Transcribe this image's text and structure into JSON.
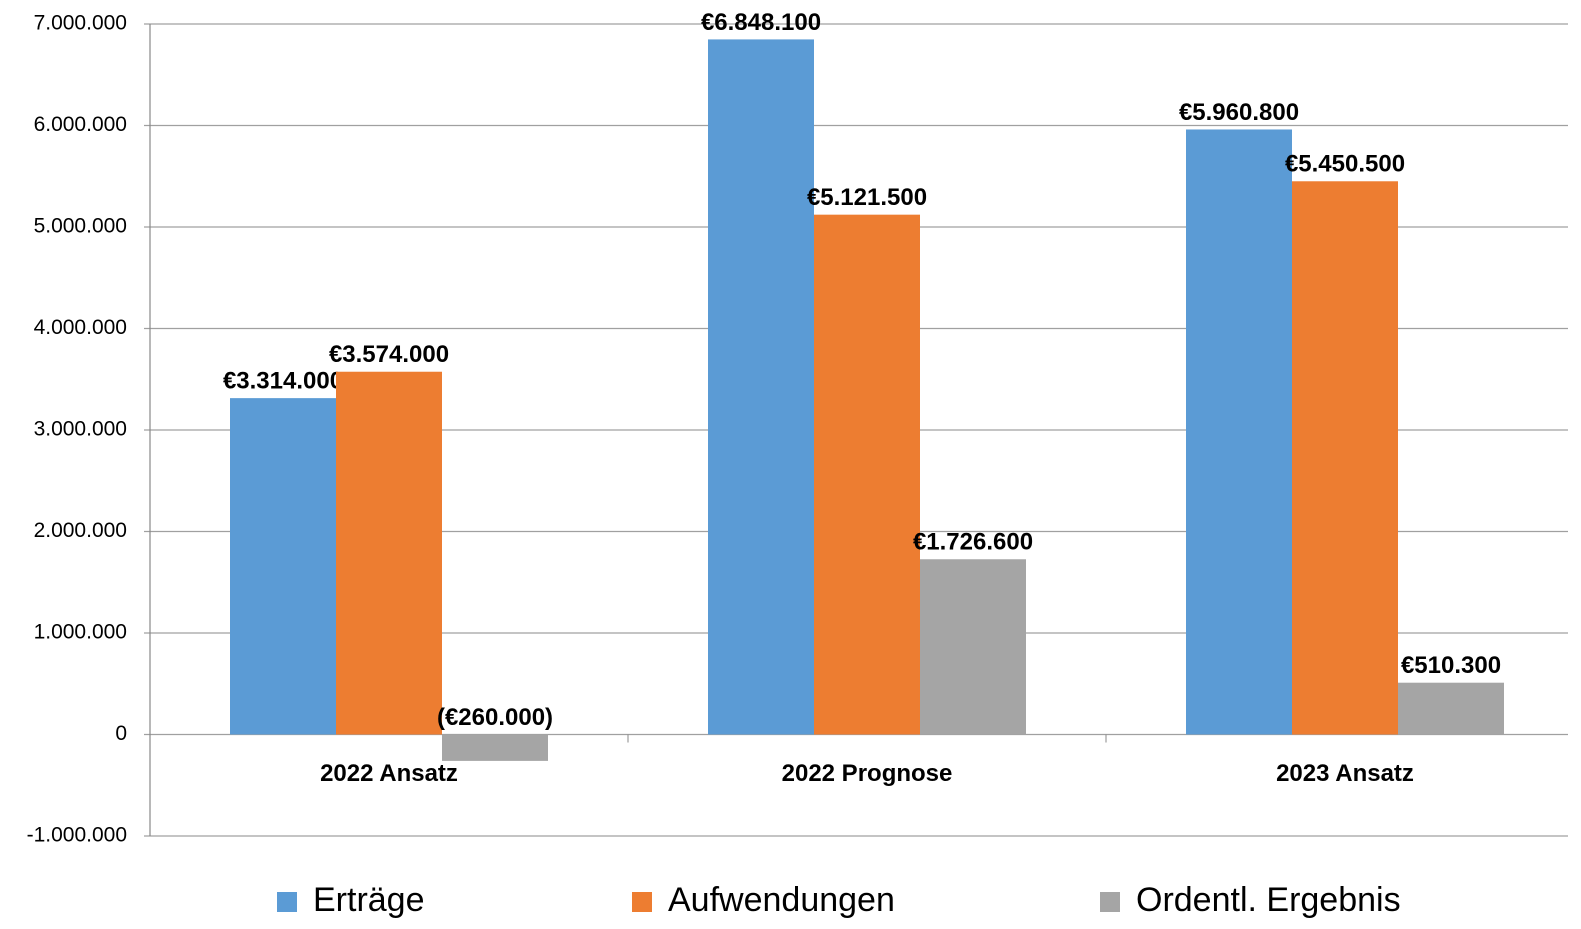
{
  "chart_data": {
    "type": "bar",
    "categories": [
      "2022 Ansatz",
      "2022 Prognose",
      "2023 Ansatz"
    ],
    "series": [
      {
        "name": "Erträge",
        "color": "#5b9bd5",
        "values": [
          3314000,
          6848100,
          5960800
        ],
        "value_labels": [
          "€3.314.000",
          "€6.848.100",
          "€5.960.800"
        ]
      },
      {
        "name": "Aufwendungen",
        "color": "#ed7d31",
        "values": [
          3574000,
          5121500,
          5450500
        ],
        "value_labels": [
          "€3.574.000",
          "€5.121.500",
          "€5.450.500"
        ]
      },
      {
        "name": "Ordentl. Ergebnis",
        "color": "#a5a5a5",
        "values": [
          -260000,
          1726600,
          510300
        ],
        "value_labels": [
          "(€260.000)",
          "€1.726.600",
          "€510.300"
        ]
      }
    ],
    "negative_label_color": "#ff0000",
    "ylim": [
      -1000000,
      7000000
    ],
    "yticks": [
      {
        "value": -1000000,
        "label": "-1.000.000"
      },
      0,
      {
        "value": 1000000,
        "label": "1.000.000"
      },
      {
        "value": 2000000,
        "label": "2.000.000"
      },
      {
        "value": 3000000,
        "label": "3.000.000"
      },
      {
        "value": 4000000,
        "label": "4.000.000"
      },
      {
        "value": 5000000,
        "label": "5.000.000"
      },
      {
        "value": 6000000,
        "label": "6.000.000"
      },
      {
        "value": 7000000,
        "label": "7.000.000"
      }
    ],
    "grid": true,
    "legend": "bottom"
  }
}
